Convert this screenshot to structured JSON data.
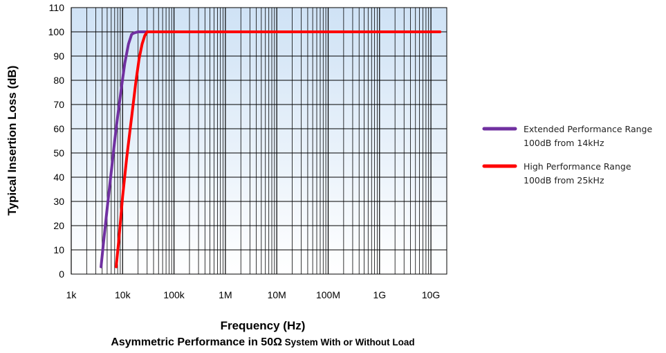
{
  "chart_data": {
    "type": "line",
    "xlabel": "Frequency (Hz)",
    "ylabel": "Typical Insertion Loss (dB)",
    "subtitle": {
      "main": "Asymmetric  Performance in 50Ω",
      "small": " System With or Without Load"
    },
    "x_scale": "log",
    "xlim": [
      1000,
      15000000000
    ],
    "ylim": [
      0,
      110
    ],
    "grid": true,
    "legend_position": "right",
    "x_ticks": [
      {
        "value": 1000,
        "label": "1k"
      },
      {
        "value": 10000,
        "label": "10k"
      },
      {
        "value": 100000,
        "label": "100k"
      },
      {
        "value": 1000000,
        "label": "1M"
      },
      {
        "value": 10000000,
        "label": "10M"
      },
      {
        "value": 100000000,
        "label": "100M"
      },
      {
        "value": 1000000000,
        "label": "1G"
      },
      {
        "value": 10000000000,
        "label": "10G"
      }
    ],
    "y_ticks": [
      {
        "value": 0,
        "label": "0"
      },
      {
        "value": 10,
        "label": "10"
      },
      {
        "value": 20,
        "label": "20"
      },
      {
        "value": 30,
        "label": "30"
      },
      {
        "value": 40,
        "label": "40"
      },
      {
        "value": 50,
        "label": "50"
      },
      {
        "value": 60,
        "label": "60"
      },
      {
        "value": 70,
        "label": "70"
      },
      {
        "value": 80,
        "label": "80"
      },
      {
        "value": 90,
        "label": "90"
      },
      {
        "value": 100,
        "label": "100"
      },
      {
        "value": 110,
        "label": "110"
      }
    ],
    "series": [
      {
        "name": "Extended Performance Range",
        "legend_line2": "100dB from 14kHz",
        "color": "#7030A0",
        "x": [
          3800,
          4200,
          5000,
          6000,
          7000,
          8000,
          9500,
          11000,
          13000,
          15000,
          17000,
          20000,
          25000,
          30000
        ],
        "y": [
          3,
          12,
          27,
          42,
          55,
          65,
          77,
          87,
          95,
          99,
          99.6,
          100,
          100,
          100
        ]
      },
      {
        "name": "High Performance Range",
        "legend_line2": "100dB from 25kHz",
        "color": "#FF0000",
        "x": [
          7500,
          8500,
          10000,
          12000,
          15000,
          18000,
          21000,
          24000,
          27000,
          30000,
          40000,
          100000,
          1000000,
          10000000,
          100000000,
          1000000000,
          10000000000,
          15000000000
        ],
        "y": [
          3,
          15,
          32,
          48,
          65,
          79,
          89,
          95,
          98.5,
          100,
          100,
          100,
          100,
          100,
          100,
          100,
          100,
          100
        ]
      }
    ]
  }
}
